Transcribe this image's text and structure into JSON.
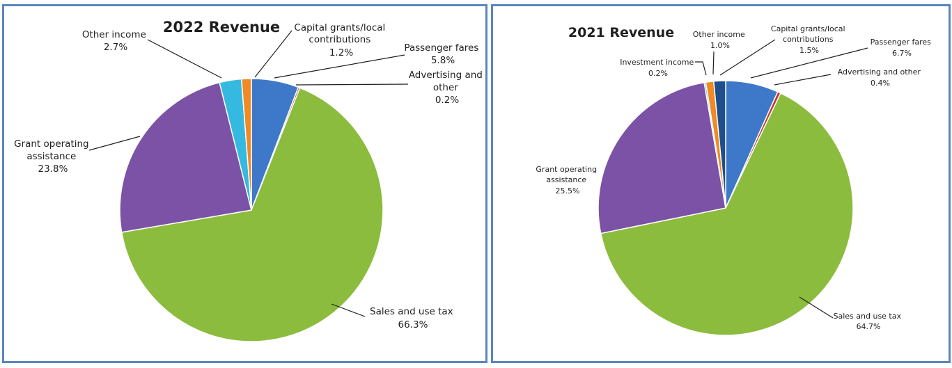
{
  "chart_data": [
    {
      "type": "pie",
      "title": "2022 Revenue",
      "slices": [
        {
          "label": "Passenger fares",
          "value": 5.8,
          "value_text": "5.8%",
          "color": "#3d78c9"
        },
        {
          "label": "Advertising and other",
          "value": 0.2,
          "value_text": "0.2%",
          "color": "#c0392b"
        },
        {
          "label": "Sales and use tax",
          "value": 66.3,
          "value_text": "66.3%",
          "color": "#8cbc3d"
        },
        {
          "label": "Grant operating assistance",
          "value": 23.8,
          "value_text": "23.8%",
          "color": "#7b52a6"
        },
        {
          "label": "Other income",
          "value": 2.7,
          "value_text": "2.7%",
          "color": "#35b9e0"
        },
        {
          "label": "Capital grants/local contributions",
          "value": 1.2,
          "value_text": "1.2%",
          "color": "#ef8a24"
        }
      ]
    },
    {
      "type": "pie",
      "title": "2021 Revenue",
      "slices": [
        {
          "label": "Passenger fares",
          "value": 6.7,
          "value_text": "6.7%",
          "color": "#3d78c9"
        },
        {
          "label": "Advertising and other",
          "value": 0.4,
          "value_text": "0.4%",
          "color": "#c0392b"
        },
        {
          "label": "Sales and use tax",
          "value": 64.7,
          "value_text": "64.7%",
          "color": "#8cbc3d"
        },
        {
          "label": "Grant operating assistance",
          "value": 25.5,
          "value_text": "25.5%",
          "color": "#7b52a6"
        },
        {
          "label": "Investment income",
          "value": 0.2,
          "value_text": "0.2%",
          "color": "#35b9e0"
        },
        {
          "label": "Other income",
          "value": 1.0,
          "value_text": "1.0%",
          "color": "#ef8a24"
        },
        {
          "label": "Capital grants/local contributions",
          "value": 1.5,
          "value_text": "1.5%",
          "color": "#1f4e8c"
        }
      ]
    }
  ]
}
